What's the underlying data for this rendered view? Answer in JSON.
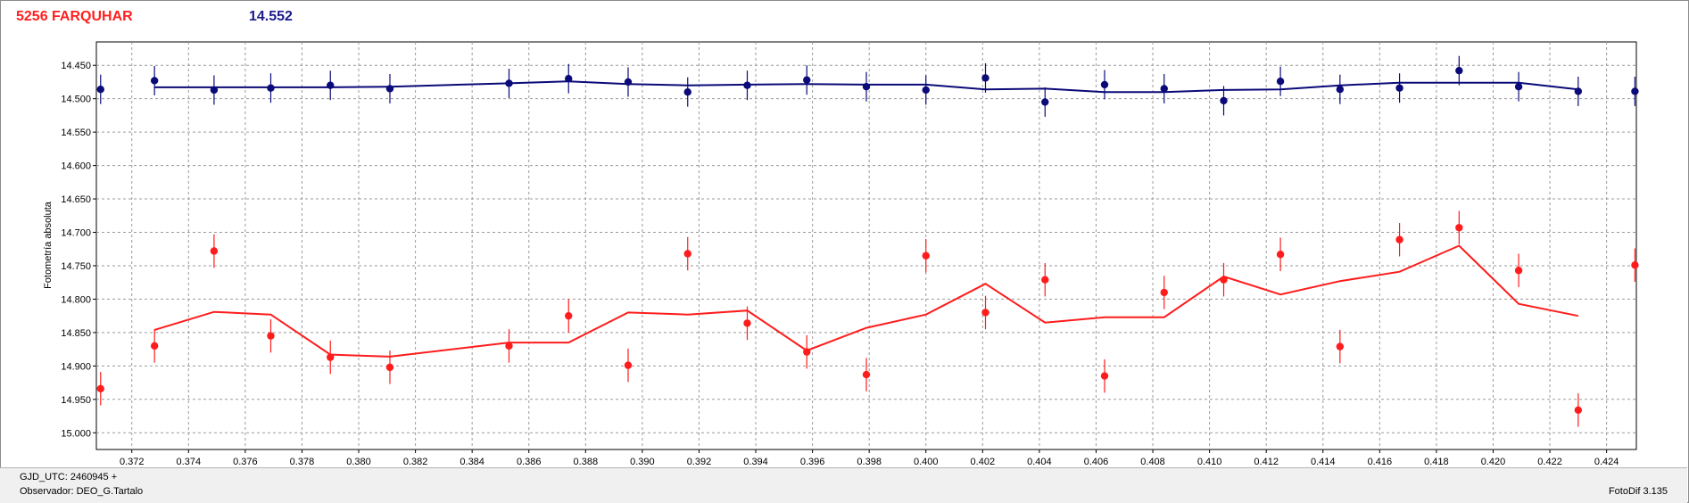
{
  "header": {
    "object_label": "5256 FARQUHAR",
    "mean_mag": "14.552"
  },
  "footer": {
    "gjd_line": "GJD_UTC: 2460945 +",
    "observer_line": "Observador: DEO_G.Tartalo",
    "version": "FotoDif 3.135"
  },
  "chart_data": {
    "type": "scatter",
    "ylabel": "Fotometría absoluta",
    "xlabel": "",
    "xlim": [
      0.37075,
      0.42505
    ],
    "ylim": [
      15.025,
      14.415
    ],
    "y_inverted": true,
    "grid": true,
    "xticks": [
      0.372,
      0.374,
      0.376,
      0.378,
      0.38,
      0.382,
      0.384,
      0.386,
      0.388,
      0.39,
      0.392,
      0.394,
      0.396,
      0.398,
      0.4,
      0.402,
      0.404,
      0.406,
      0.408,
      0.41,
      0.412,
      0.414,
      0.416,
      0.418,
      0.42,
      0.422,
      0.424
    ],
    "xtick_labels": [
      "0.372",
      "0.374",
      "0.376",
      "0.378",
      "0.380",
      "0.382",
      "0.384",
      "0.386",
      "0.388",
      "0.390",
      "0.392",
      "0.394",
      "0.396",
      "0.398",
      "0.400",
      "0.402",
      "0.404",
      "0.406",
      "0.408",
      "0.410",
      "0.412",
      "0.414",
      "0.416",
      "0.418",
      "0.420",
      "0.422",
      "0.424"
    ],
    "yticks": [
      14.45,
      14.5,
      14.55,
      14.6,
      14.65,
      14.7,
      14.75,
      14.8,
      14.85,
      14.9,
      14.95,
      15.0
    ],
    "ytick_labels": [
      "14.450",
      "14.500",
      "14.550",
      "14.600",
      "14.650",
      "14.700",
      "14.750",
      "14.800",
      "14.850",
      "14.900",
      "14.950",
      "15.000"
    ],
    "series": [
      {
        "color": "#0a0a78",
        "marker": "circle",
        "error": 0.022,
        "x": [
          0.3709,
          0.3728,
          0.3749,
          0.3769,
          0.379,
          0.3811,
          0.3853,
          0.3874,
          0.3895,
          0.3916,
          0.3937,
          0.3958,
          0.3979,
          0.4,
          0.4021,
          0.4042,
          0.4063,
          0.4084,
          0.4105,
          0.4125,
          0.4146,
          0.4167,
          0.4188,
          0.4209,
          0.423,
          0.425
        ],
        "y": [
          14.486,
          14.473,
          14.487,
          14.484,
          14.48,
          14.485,
          14.477,
          14.47,
          14.475,
          14.49,
          14.48,
          14.472,
          14.482,
          14.487,
          14.469,
          14.505,
          14.479,
          14.485,
          14.503,
          14.474,
          14.486,
          14.484,
          14.458,
          14.482,
          14.489,
          14.489
        ]
      },
      {
        "color": "#ff1c1c",
        "marker": "circle",
        "error": 0.025,
        "x": [
          0.3709,
          0.3728,
          0.3749,
          0.3769,
          0.379,
          0.3811,
          0.3853,
          0.3874,
          0.3895,
          0.3916,
          0.3937,
          0.3958,
          0.3979,
          0.4,
          0.4021,
          0.4042,
          0.4063,
          0.4084,
          0.4105,
          0.4125,
          0.4146,
          0.4167,
          0.4188,
          0.4209,
          0.423,
          0.425
        ],
        "y": [
          14.934,
          14.87,
          14.728,
          14.855,
          14.887,
          14.902,
          14.87,
          14.825,
          14.899,
          14.732,
          14.836,
          14.879,
          14.913,
          14.735,
          14.82,
          14.771,
          14.915,
          14.79,
          14.771,
          14.733,
          14.871,
          14.711,
          14.693,
          14.757,
          14.966,
          14.749
        ]
      }
    ],
    "fits": [
      {
        "color": "#0a0a78",
        "x": [
          0.3728,
          0.3749,
          0.3769,
          0.379,
          0.3811,
          0.3853,
          0.3874,
          0.3895,
          0.3916,
          0.3937,
          0.3958,
          0.3979,
          0.4,
          0.4021,
          0.4042,
          0.4063,
          0.4084,
          0.4105,
          0.4125,
          0.4146,
          0.4167,
          0.4188,
          0.4209,
          0.423
        ],
        "y": [
          14.483,
          14.483,
          14.483,
          14.483,
          14.482,
          14.477,
          14.474,
          14.478,
          14.48,
          14.479,
          14.478,
          14.479,
          14.479,
          14.486,
          14.485,
          14.49,
          14.49,
          14.487,
          14.486,
          14.48,
          14.476,
          14.476,
          14.476,
          14.486
        ]
      },
      {
        "color": "#ff1c1c",
        "x": [
          0.3728,
          0.3749,
          0.3769,
          0.379,
          0.3811,
          0.3853,
          0.3874,
          0.3895,
          0.3916,
          0.3937,
          0.3958,
          0.3979,
          0.4,
          0.4021,
          0.4042,
          0.4063,
          0.4084,
          0.4105,
          0.4125,
          0.4146,
          0.4167,
          0.4188,
          0.4209,
          0.423
        ],
        "y": [
          14.846,
          14.819,
          14.823,
          14.883,
          14.886,
          14.865,
          14.865,
          14.82,
          14.823,
          14.817,
          14.877,
          14.843,
          14.823,
          14.777,
          14.835,
          14.827,
          14.827,
          14.766,
          14.793,
          14.773,
          14.759,
          14.72,
          14.807,
          14.825
        ]
      }
    ]
  }
}
